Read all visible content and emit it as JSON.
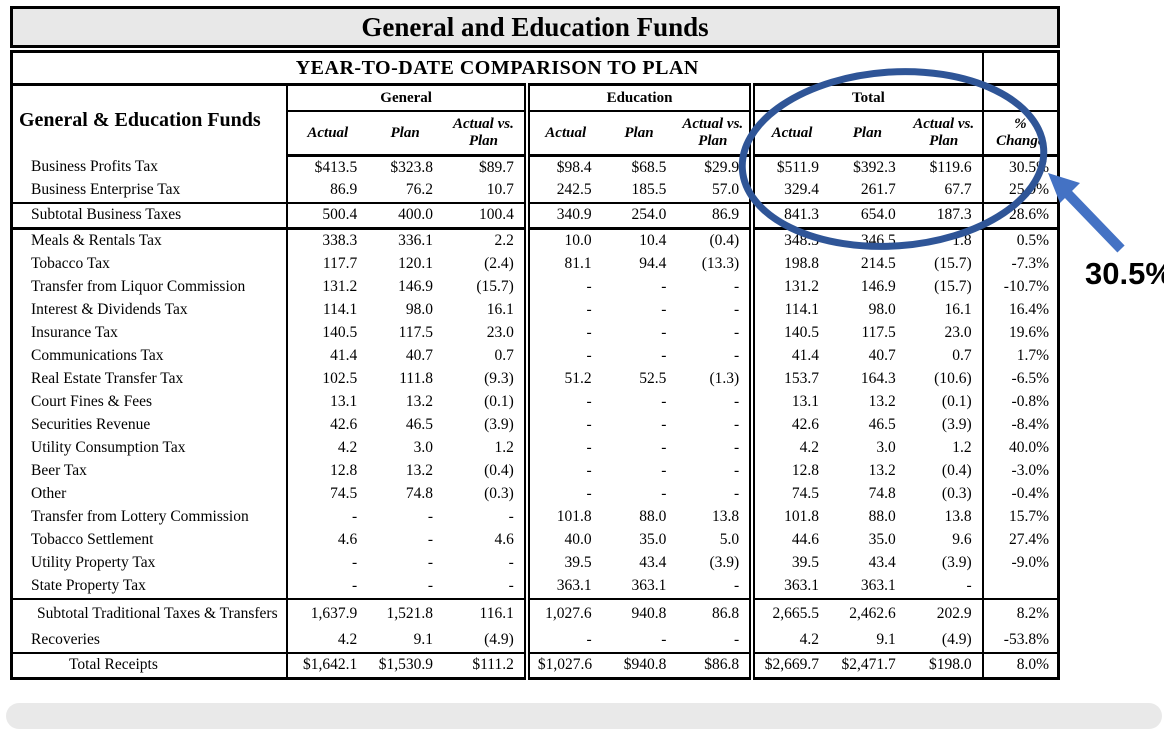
{
  "title": "General and Education Funds",
  "table": {
    "subtitle": "YEAR-TO-DATE COMPARISON TO PLAN",
    "row_header": "General & Education Funds",
    "groups": [
      "General",
      "Education",
      "Total"
    ],
    "sub_headers": [
      "Actual",
      "Plan",
      "Actual vs. Plan"
    ],
    "pct_header": "% Change",
    "rows": [
      {
        "label": "Business Profits Tax",
        "kind": "item",
        "values": [
          "$413.5",
          "$323.8",
          "$89.7",
          "$98.4",
          "$68.5",
          "$29.9",
          "$511.9",
          "$392.3",
          "$119.6"
        ],
        "pct": "30.5%"
      },
      {
        "label": "Business Enterprise Tax",
        "kind": "item",
        "values": [
          "86.9",
          "76.2",
          "10.7",
          "242.5",
          "185.5",
          "57.0",
          "329.4",
          "261.7",
          "67.7"
        ],
        "pct": "25.9%"
      },
      {
        "label": "Subtotal Business Taxes",
        "kind": "subtotal-box",
        "values": [
          "500.4",
          "400.0",
          "100.4",
          "340.9",
          "254.0",
          "86.9",
          "841.3",
          "654.0",
          "187.3"
        ],
        "pct": "28.6%"
      },
      {
        "label": "Meals & Rentals Tax",
        "kind": "item",
        "values": [
          "338.3",
          "336.1",
          "2.2",
          "10.0",
          "10.4",
          "(0.4)",
          "348.3",
          "346.5",
          "1.8"
        ],
        "pct": "0.5%"
      },
      {
        "label": "Tobacco Tax",
        "kind": "item",
        "values": [
          "117.7",
          "120.1",
          "(2.4)",
          "81.1",
          "94.4",
          "(13.3)",
          "198.8",
          "214.5",
          "(15.7)"
        ],
        "pct": "-7.3%"
      },
      {
        "label": "Transfer from Liquor Commission",
        "kind": "item",
        "values": [
          "131.2",
          "146.9",
          "(15.7)",
          "-",
          "-",
          "-",
          "131.2",
          "146.9",
          "(15.7)"
        ],
        "pct": "-10.7%"
      },
      {
        "label": "Interest & Dividends Tax",
        "kind": "item",
        "values": [
          "114.1",
          "98.0",
          "16.1",
          "-",
          "-",
          "-",
          "114.1",
          "98.0",
          "16.1"
        ],
        "pct": "16.4%"
      },
      {
        "label": "Insurance Tax",
        "kind": "item",
        "values": [
          "140.5",
          "117.5",
          "23.0",
          "-",
          "-",
          "-",
          "140.5",
          "117.5",
          "23.0"
        ],
        "pct": "19.6%"
      },
      {
        "label": "Communications Tax",
        "kind": "item",
        "values": [
          "41.4",
          "40.7",
          "0.7",
          "-",
          "-",
          "-",
          "41.4",
          "40.7",
          "0.7"
        ],
        "pct": "1.7%"
      },
      {
        "label": "Real Estate Transfer Tax",
        "kind": "item",
        "values": [
          "102.5",
          "111.8",
          "(9.3)",
          "51.2",
          "52.5",
          "(1.3)",
          "153.7",
          "164.3",
          "(10.6)"
        ],
        "pct": "-6.5%"
      },
      {
        "label": "Court Fines & Fees",
        "kind": "item",
        "values": [
          "13.1",
          "13.2",
          "(0.1)",
          "-",
          "-",
          "-",
          "13.1",
          "13.2",
          "(0.1)"
        ],
        "pct": "-0.8%"
      },
      {
        "label": "Securities Revenue",
        "kind": "item",
        "values": [
          "42.6",
          "46.5",
          "(3.9)",
          "-",
          "-",
          "-",
          "42.6",
          "46.5",
          "(3.9)"
        ],
        "pct": "-8.4%"
      },
      {
        "label": "Utility Consumption Tax",
        "kind": "item",
        "values": [
          "4.2",
          "3.0",
          "1.2",
          "-",
          "-",
          "-",
          "4.2",
          "3.0",
          "1.2"
        ],
        "pct": "40.0%"
      },
      {
        "label": "Beer Tax",
        "kind": "item",
        "values": [
          "12.8",
          "13.2",
          "(0.4)",
          "-",
          "-",
          "-",
          "12.8",
          "13.2",
          "(0.4)"
        ],
        "pct": "-3.0%"
      },
      {
        "label": "Other",
        "kind": "item",
        "values": [
          "74.5",
          "74.8",
          "(0.3)",
          "-",
          "-",
          "-",
          "74.5",
          "74.8",
          "(0.3)"
        ],
        "pct": "-0.4%"
      },
      {
        "label": "Transfer from Lottery Commission",
        "kind": "item",
        "values": [
          "-",
          "-",
          "-",
          "101.8",
          "88.0",
          "13.8",
          "101.8",
          "88.0",
          "13.8"
        ],
        "pct": "15.7%"
      },
      {
        "label": "Tobacco Settlement",
        "kind": "item",
        "values": [
          "4.6",
          "-",
          "4.6",
          "40.0",
          "35.0",
          "5.0",
          "44.6",
          "35.0",
          "9.6"
        ],
        "pct": "27.4%"
      },
      {
        "label": "Utility Property Tax",
        "kind": "item",
        "values": [
          "-",
          "-",
          "-",
          "39.5",
          "43.4",
          "(3.9)",
          "39.5",
          "43.4",
          "(3.9)"
        ],
        "pct": "-9.0%"
      },
      {
        "label": "State Property Tax",
        "kind": "item",
        "values": [
          "-",
          "-",
          "-",
          "363.1",
          "363.1",
          "-",
          "363.1",
          "363.1",
          "-"
        ],
        "pct": ""
      },
      {
        "label": "Subtotal Traditional Taxes & Transfers",
        "kind": "subtotal",
        "values": [
          "1,637.9",
          "1,521.8",
          "116.1",
          "1,027.6",
          "940.8",
          "86.8",
          "2,665.5",
          "2,462.6",
          "202.9"
        ],
        "pct": "8.2%"
      },
      {
        "label": "Recoveries",
        "kind": "item",
        "values": [
          "4.2",
          "9.1",
          "(4.9)",
          "-",
          "-",
          "-",
          "4.2",
          "9.1",
          "(4.9)"
        ],
        "pct": "-53.8%"
      },
      {
        "label": "Total Receipts",
        "kind": "grand",
        "values": [
          "$1,642.1",
          "$1,530.9",
          "$111.2",
          "$1,027.6",
          "$940.8",
          "$86.8",
          "$2,669.7",
          "$2,471.7",
          "$198.0"
        ],
        "pct": "8.0%"
      }
    ]
  },
  "annotation": {
    "callout_value": "30.5%",
    "ellipse_color": "#2F5597",
    "arrow_color": "#4472C4"
  }
}
